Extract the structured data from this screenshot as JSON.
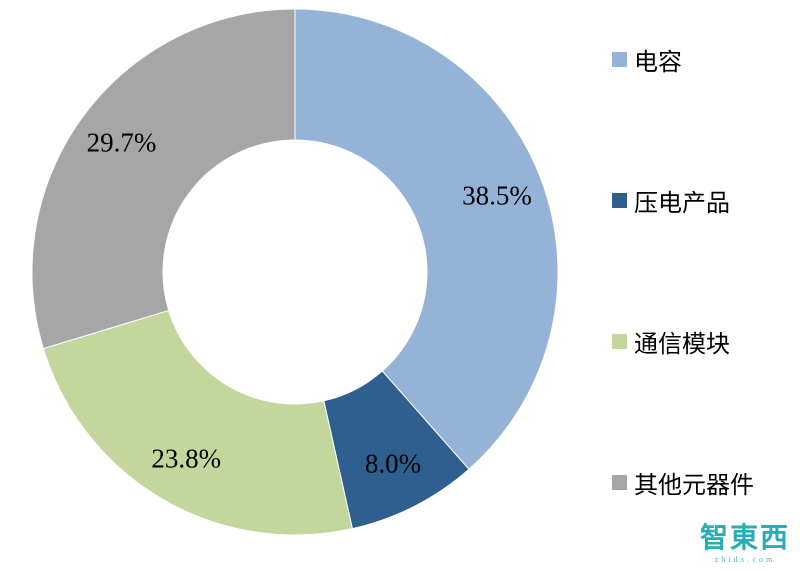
{
  "chart_data": {
    "type": "pie",
    "donut": true,
    "start_angle_deg": 0,
    "direction": "clockwise",
    "title": "",
    "legend_position": "right",
    "segments": [
      {
        "label": "电容",
        "value": 38.5,
        "display": "38.5%",
        "color": "#95B3D7"
      },
      {
        "label": "压电产品",
        "value": 8.0,
        "display": "8.0%",
        "color": "#2E5F8F"
      },
      {
        "label": "通信模块",
        "value": 23.8,
        "display": "23.8%",
        "color": "#C3D69B"
      },
      {
        "label": "其他元器件",
        "value": 29.7,
        "display": "29.7%",
        "color": "#A6A6A6"
      }
    ]
  },
  "watermark": {
    "text": "智東西",
    "subtext": "zhidx.com",
    "color": "#2BAAB8"
  }
}
